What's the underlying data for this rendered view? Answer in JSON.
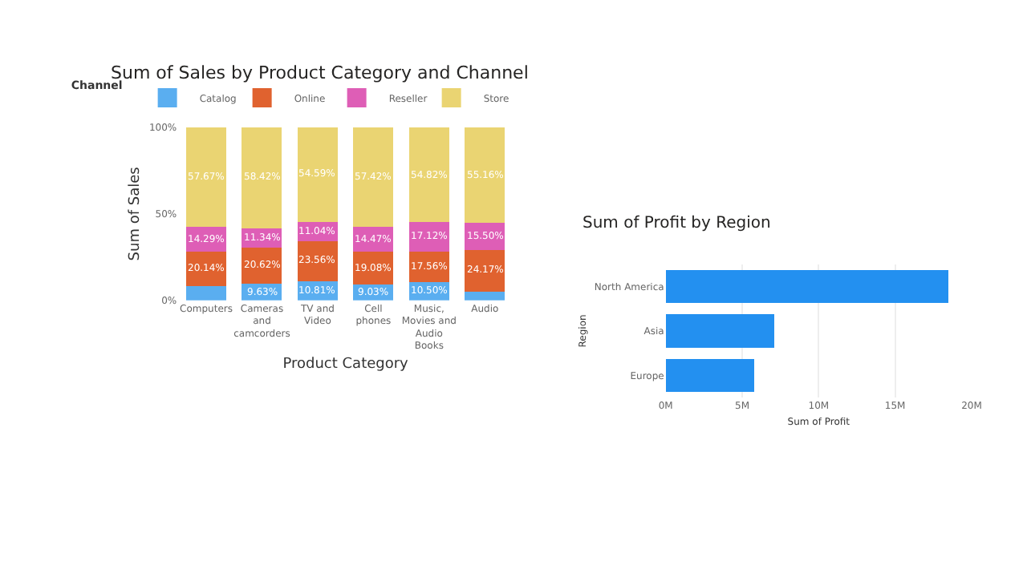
{
  "chart_data": [
    {
      "type": "bar",
      "title": "Sum of Sales by Product Category and Channel",
      "xlabel": "Product Category",
      "ylabel": "Sum of Sales",
      "legend_title": "Channel",
      "legend": "top left",
      "stacked": true,
      "grid": false,
      "categories": [
        "Computers",
        "Cameras and camcorders",
        "TV and Video",
        "Cell phones",
        "Music, Movies and Audio Books",
        "Audio"
      ],
      "ylim": [
        0,
        100
      ],
      "yticks": [
        {
          "value": 0,
          "label": "0%"
        },
        {
          "value": 50,
          "label": "50%"
        },
        {
          "value": 100,
          "label": "100%"
        }
      ],
      "series": [
        {
          "name": "Catalog",
          "color": "#5aaef0",
          "values": [
            8,
            9.63,
            10.81,
            9.03,
            10.5,
            5
          ],
          "value_labels": [
            null,
            "9.63%",
            "10.81%",
            "9.03%",
            "10.50%",
            null
          ]
        },
        {
          "name": "Online",
          "color": "#e0622f",
          "values": [
            20.14,
            20.62,
            23.56,
            19.08,
            17.56,
            24.17
          ],
          "value_labels": [
            "20.14%",
            "20.62%",
            "23.56%",
            "19.08%",
            "17.56%",
            "24.17%"
          ]
        },
        {
          "name": "Reseller",
          "color": "#de5eb6",
          "values": [
            14.29,
            11.34,
            11.04,
            14.47,
            17.12,
            15.5
          ],
          "value_labels": [
            "14.29%",
            "11.34%",
            "11.04%",
            "14.47%",
            "17.12%",
            "15.50%"
          ]
        },
        {
          "name": "Store",
          "color": "#ead472",
          "values": [
            57.67,
            58.42,
            54.59,
            57.42,
            54.82,
            55.16
          ],
          "value_labels": [
            "57.67%",
            "58.42%",
            "54.59%",
            "57.42%",
            "54.82%",
            "55.16%"
          ]
        }
      ]
    },
    {
      "type": "bar",
      "title": "Sum of Profit by Region",
      "xlabel": "Sum of Profit",
      "ylabel": "Region",
      "orientation": "horizontal",
      "grid": "x",
      "legend": false,
      "categories": [
        "North America",
        "Asia",
        "Europe"
      ],
      "xlim": [
        0,
        20000000
      ],
      "xticks": [
        {
          "value": 0,
          "label": "0M"
        },
        {
          "value": 5000000,
          "label": "5M"
        },
        {
          "value": 10000000,
          "label": "10M"
        },
        {
          "value": 15000000,
          "label": "15M"
        },
        {
          "value": 20000000,
          "label": "20M"
        }
      ],
      "series": [
        {
          "color": "#2390f0",
          "values": [
            18500000,
            7100000,
            5800000
          ]
        }
      ]
    }
  ]
}
